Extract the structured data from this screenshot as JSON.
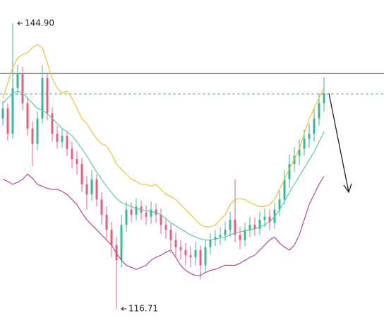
{
  "chart_data": {
    "type": "candlestick",
    "ylim": [
      115.8,
      147.2
    ],
    "up_color": "#3cb59a",
    "down_color": "#e0607e",
    "ohlc": [
      [
        135.5,
        137.2,
        134.8,
        136.5
      ],
      [
        136.5,
        137.0,
        133.3,
        134.0
      ],
      [
        134.0,
        144.9,
        133.5,
        138.5
      ],
      [
        138.5,
        140.8,
        137.8,
        140.0
      ],
      [
        140.0,
        140.6,
        136.3,
        137.0
      ],
      [
        137.0,
        137.6,
        133.8,
        134.5
      ],
      [
        134.5,
        135.2,
        130.8,
        133.0
      ],
      [
        133.0,
        136.2,
        132.4,
        135.5
      ],
      [
        135.5,
        140.8,
        135.0,
        139.5
      ],
      [
        139.5,
        140.0,
        135.3,
        136.0
      ],
      [
        136.0,
        136.6,
        133.2,
        134.0
      ],
      [
        134.0,
        134.8,
        132.5,
        133.2
      ],
      [
        133.2,
        134.5,
        132.6,
        133.8
      ],
      [
        133.8,
        134.3,
        131.8,
        132.5
      ],
      [
        132.5,
        133.2,
        130.6,
        131.5
      ],
      [
        131.5,
        132.3,
        130.0,
        131.0
      ],
      [
        131.0,
        131.6,
        128.2,
        129.0
      ],
      [
        129.0,
        129.8,
        126.5,
        128.0
      ],
      [
        128.0,
        130.4,
        127.4,
        129.5
      ],
      [
        129.5,
        130.0,
        126.8,
        127.5
      ],
      [
        127.5,
        128.2,
        125.0,
        126.0
      ],
      [
        126.0,
        126.8,
        123.6,
        124.5
      ],
      [
        124.5,
        125.3,
        121.8,
        123.0
      ],
      [
        123.0,
        123.8,
        116.71,
        121.5
      ],
      [
        121.5,
        126.0,
        120.8,
        125.0
      ],
      [
        125.0,
        127.3,
        124.3,
        126.5
      ],
      [
        126.5,
        127.2,
        125.3,
        126.0
      ],
      [
        126.0,
        127.6,
        125.4,
        126.8
      ],
      [
        126.8,
        127.4,
        125.5,
        126.2
      ],
      [
        126.2,
        126.9,
        125.0,
        125.8
      ],
      [
        125.8,
        127.3,
        125.1,
        126.5
      ],
      [
        126.5,
        127.1,
        125.2,
        126.0
      ],
      [
        126.0,
        126.6,
        124.1,
        125.0
      ],
      [
        125.0,
        125.7,
        123.6,
        124.5
      ],
      [
        124.5,
        125.1,
        122.6,
        123.5
      ],
      [
        123.5,
        124.2,
        121.9,
        122.8
      ],
      [
        122.8,
        123.5,
        121.6,
        122.5
      ],
      [
        122.5,
        123.2,
        121.0,
        122.0
      ],
      [
        122.0,
        122.9,
        120.8,
        121.8
      ],
      [
        121.8,
        123.3,
        121.0,
        122.5
      ],
      [
        122.5,
        123.0,
        119.6,
        121.0
      ],
      [
        121.0,
        123.5,
        120.4,
        122.8
      ],
      [
        122.8,
        124.2,
        122.1,
        123.5
      ],
      [
        123.5,
        124.5,
        122.9,
        123.8
      ],
      [
        123.8,
        124.8,
        123.0,
        124.0
      ],
      [
        124.0,
        125.3,
        123.4,
        124.5
      ],
      [
        124.5,
        126.3,
        123.8,
        125.5
      ],
      [
        125.5,
        129.5,
        123.3,
        124.0
      ],
      [
        124.0,
        124.8,
        122.6,
        123.5
      ],
      [
        123.5,
        125.2,
        122.9,
        124.5
      ],
      [
        124.5,
        125.8,
        123.8,
        125.0
      ],
      [
        125.0,
        125.7,
        123.9,
        124.6
      ],
      [
        124.6,
        126.3,
        124.0,
        125.5
      ],
      [
        125.5,
        126.6,
        124.8,
        125.8
      ],
      [
        125.8,
        126.5,
        124.5,
        125.2
      ],
      [
        125.2,
        127.2,
        124.6,
        126.5
      ],
      [
        126.5,
        128.4,
        125.9,
        127.5
      ],
      [
        127.5,
        130.4,
        127.0,
        129.5
      ],
      [
        129.5,
        132.0,
        128.6,
        131.0
      ],
      [
        131.0,
        132.7,
        130.2,
        131.8
      ],
      [
        131.8,
        133.4,
        130.9,
        132.5
      ],
      [
        132.5,
        134.4,
        131.8,
        133.5
      ],
      [
        133.5,
        135.0,
        132.6,
        134.0
      ],
      [
        134.0,
        136.4,
        133.2,
        135.5
      ],
      [
        135.5,
        138.0,
        134.8,
        137.0
      ],
      [
        137.0,
        139.6,
        136.2,
        138.0
      ]
    ],
    "bands": [
      {
        "color": "#e8c23a",
        "values": [
          137.5,
          139,
          140.5,
          141.5,
          141.8,
          142.0,
          142.5,
          142.8,
          142.5,
          141.0,
          139.5,
          138.5,
          138.0,
          138.2,
          137.5,
          136.5,
          135.5,
          135.0,
          134.2,
          133.5,
          133.0,
          132.8,
          132.0,
          131.0,
          130.5,
          130.0,
          129.5,
          129.3,
          129.0,
          129.0,
          128.8,
          129.0,
          128.5,
          128.0,
          127.8,
          127.5,
          127.0,
          126.5,
          126.0,
          125.5,
          125.0,
          124.8,
          124.8,
          125.0,
          125.5,
          126.0,
          127.0,
          127.5,
          127.6,
          127.5,
          127.2,
          127.0,
          126.8,
          126.8,
          127.0,
          127.5,
          128.5,
          129.5,
          130.5,
          131.5,
          132.5,
          134.0,
          135.5,
          136.5,
          137.5,
          138.5
        ]
      },
      {
        "color": "#5cc8b2",
        "values": [
          137.0,
          137.5,
          138.0,
          138.2,
          138.0,
          137.5,
          137.0,
          136.5,
          136.3,
          136.0,
          135.5,
          135.0,
          134.5,
          134.2,
          133.8,
          133.2,
          132.5,
          131.8,
          131.0,
          130.2,
          129.5,
          128.8,
          128.2,
          127.6,
          127.2,
          127.0,
          126.8,
          126.6,
          126.5,
          126.4,
          126.3,
          126.2,
          126.0,
          125.6,
          125.2,
          124.9,
          124.6,
          124.3,
          124.0,
          123.8,
          123.6,
          123.5,
          123.5,
          123.6,
          123.7,
          123.8,
          124.0,
          124.2,
          124.3,
          124.4,
          124.5,
          124.6,
          124.8,
          125.0,
          125.3,
          125.8,
          126.5,
          127.3,
          128.2,
          129.0,
          129.8,
          130.6,
          131.4,
          132.2,
          133.2,
          134.2
        ]
      },
      {
        "color": "#b04a9e",
        "values": [
          129.5,
          129.3,
          129.0,
          129.2,
          129.5,
          130.0,
          129.6,
          129.0,
          128.8,
          128.6,
          128.5,
          128.5,
          128.3,
          128.0,
          127.5,
          127.0,
          126.2,
          125.5,
          125.0,
          124.5,
          124.0,
          123.5,
          123.0,
          122.2,
          121.5,
          121.0,
          120.8,
          120.6,
          120.8,
          121.0,
          121.5,
          121.8,
          122.0,
          122.3,
          122.5,
          121.8,
          121.0,
          120.5,
          120.2,
          120.0,
          120.0,
          120.3,
          120.5,
          120.6,
          120.8,
          121.0,
          121.0,
          121.0,
          121.2,
          121.5,
          121.8,
          122.0,
          122.5,
          123.0,
          123.5,
          123.8,
          123.2,
          122.8,
          122.5,
          123.0,
          124.0,
          125.5,
          127.0,
          128.0,
          129.0,
          129.8
        ]
      }
    ],
    "reference_lines": [
      {
        "value": 139.95,
        "style": "solid",
        "color": "#222222"
      },
      {
        "value": 137.92,
        "style": "dashed",
        "color": "#6aa88a"
      }
    ],
    "annotations": [
      {
        "value": 144.9,
        "label": "144.90"
      },
      {
        "value": 116.71,
        "label": "116.71"
      }
    ]
  }
}
